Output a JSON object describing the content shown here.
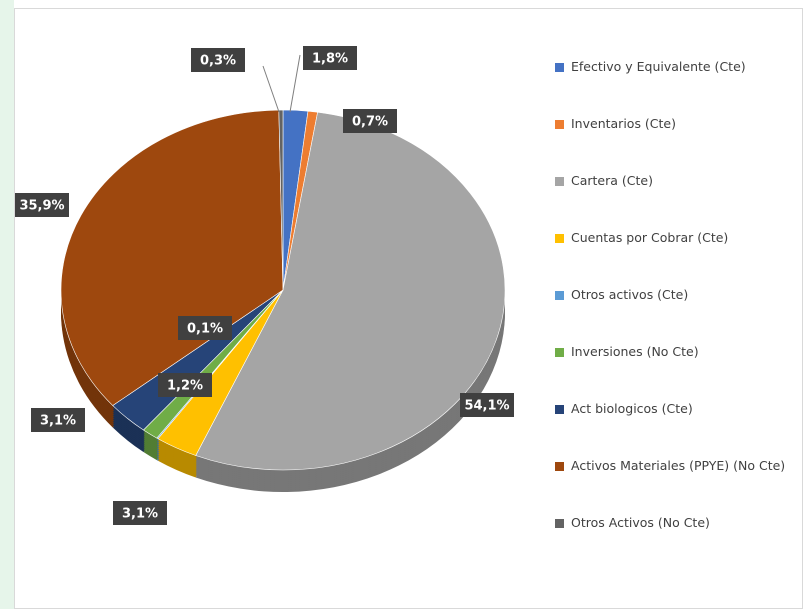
{
  "chart_data": {
    "type": "pie",
    "categories": [
      "Efectivo y Equivalente  (Cte)",
      "Inventarios (Cte)",
      "Cartera (Cte)",
      "Cuentas por Cobrar (Cte)",
      "Otros activos (Cte)",
      "Inversiones (No Cte)",
      "Act biologicos (Cte)",
      "Activos Materiales (PPYE) (No Cte)",
      "Otros Activos  (No Cte)"
    ],
    "values": [
      1.8,
      0.7,
      54.1,
      3.1,
      0.1,
      1.2,
      3.1,
      35.9,
      0.3
    ],
    "value_labels": [
      "1,8%",
      "0,7%",
      "54,1%",
      "3,1%",
      "0,1%",
      "1,2%",
      "3,1%",
      "35,9%",
      "0,3%"
    ],
    "colors": [
      "#4472c4",
      "#ed7d31",
      "#a5a5a5",
      "#ffc000",
      "#5b9bd5",
      "#70ad47",
      "#264478",
      "#9e480e",
      "#636363"
    ],
    "legend": "right"
  }
}
